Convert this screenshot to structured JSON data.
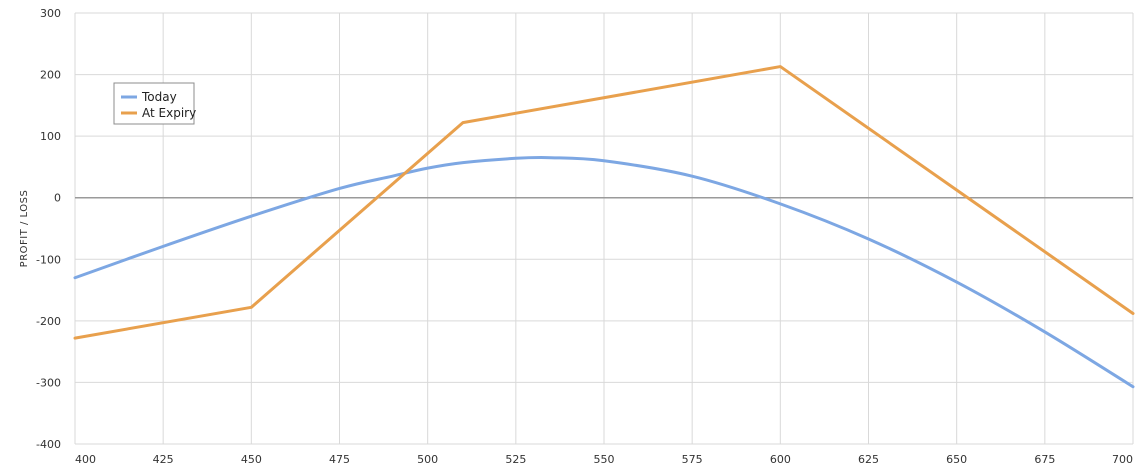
{
  "chart_data": {
    "type": "line",
    "title": "",
    "xlabel": "",
    "ylabel": "PROFIT / LOSS",
    "xlim": [
      400,
      700
    ],
    "ylim": [
      -400,
      300
    ],
    "x_ticks": [
      400,
      425,
      450,
      475,
      500,
      525,
      550,
      575,
      600,
      625,
      650,
      675,
      700
    ],
    "y_ticks": [
      300,
      200,
      100,
      0,
      -100,
      -200,
      -300,
      -400
    ],
    "grid": true,
    "legend_position": "top-left",
    "series": [
      {
        "name": "Today",
        "color": "#7DA7E3",
        "smooth": true,
        "x": [
          400,
          425,
          450,
          475,
          490,
          500,
          510,
          525,
          535,
          550,
          575,
          600,
          625,
          650,
          675,
          700
        ],
        "y": [
          -130,
          -79,
          -30,
          15,
          35,
          48,
          57,
          64,
          65,
          60,
          35,
          -10,
          -67,
          -137,
          -218,
          -307
        ]
      },
      {
        "name": "At Expiry",
        "color": "#E8A04D",
        "smooth": false,
        "x": [
          400,
          450,
          510,
          600,
          700
        ],
        "y": [
          -228,
          -178,
          122,
          213,
          -188
        ]
      }
    ]
  }
}
